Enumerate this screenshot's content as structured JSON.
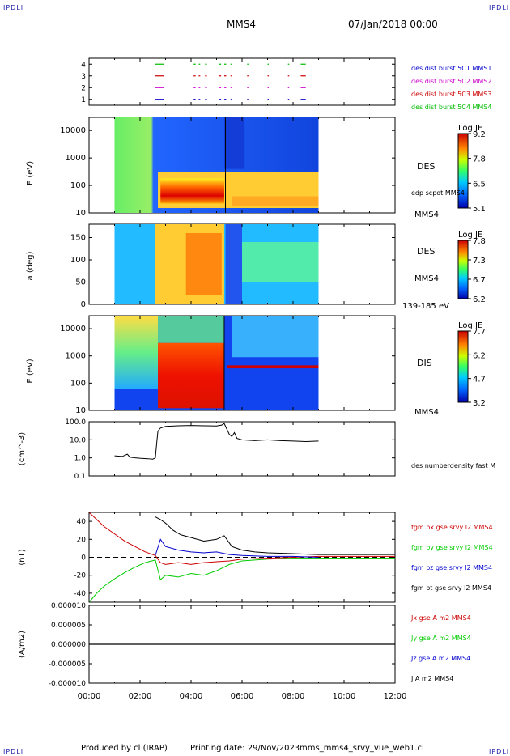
{
  "corners": {
    "tl": "IPDLI",
    "tr": "IPDLI",
    "bl": "IPDLI",
    "br": "IPDLI"
  },
  "header": {
    "spacecraft": "MMS4",
    "date": "07/Jan/2018 00:00"
  },
  "footer": {
    "produced": "Produced by cl (IRAP)",
    "printing": "Printing date: 29/Nov/2023",
    "script": "mms_mms4_srvy_vue_web1.cl"
  },
  "x_axis": {
    "labels": [
      "00:00",
      "02:00",
      "04:00",
      "06:00",
      "08:00",
      "10:00",
      "12:00"
    ],
    "range_hours": [
      0,
      12
    ]
  },
  "chart_data": [
    {
      "type": "scatter",
      "panel": "burst-availability",
      "ylim": [
        0.5,
        4.5
      ],
      "yticks": [
        "1",
        "2",
        "3",
        "4"
      ],
      "legend": [
        {
          "name": "des dist burst 5C1 MMS1",
          "color": "#0000cc"
        },
        {
          "name": "des dist burst 5C2 MMS2",
          "color": "#cc00cc"
        },
        {
          "name": "des dist burst 5C3 MMS3",
          "color": "#cc0000"
        },
        {
          "name": "des dist burst 5C4 MMS4",
          "color": "#00bb00"
        }
      ],
      "burst_intervals_hours": [
        [
          2.6,
          2.95
        ],
        [
          4.1,
          4.18
        ],
        [
          4.3,
          4.36
        ],
        [
          4.55,
          4.62
        ],
        [
          5.1,
          5.18
        ],
        [
          5.3,
          5.38
        ],
        [
          5.55,
          5.6
        ],
        [
          6.2,
          6.25
        ],
        [
          7.0,
          7.05
        ],
        [
          7.8,
          7.85
        ],
        [
          8.3,
          8.5
        ]
      ]
    },
    {
      "type": "heatmap",
      "panel": "des-energy-spectrogram",
      "ylabel": "E (eV)",
      "yscale": "log",
      "ylim": [
        10,
        30000
      ],
      "yticks": [
        "10",
        "100",
        "1000",
        "10000"
      ],
      "instrument": "DES",
      "spacecraft": "MMS4",
      "overlay": "edp scpot MMS4",
      "colorbar": {
        "title": "Log JE",
        "ticks": [
          "9.2",
          "7.8",
          "6.5",
          "5.1"
        ],
        "range": [
          5.1,
          9.2
        ]
      },
      "time_range_hours": [
        1.0,
        9.0
      ]
    },
    {
      "type": "heatmap",
      "panel": "des-pitch-angle",
      "ylabel": "a (deg)",
      "ylim": [
        0,
        180
      ],
      "yticks": [
        "0",
        "50",
        "100",
        "150"
      ],
      "instrument": "DES",
      "spacecraft": "MMS4",
      "energy_range": "139-185 eV",
      "colorbar": {
        "title": "Log JE",
        "ticks": [
          "7.8",
          "7.3",
          "6.7",
          "6.2"
        ],
        "range": [
          6.2,
          7.8
        ]
      },
      "time_range_hours": [
        1.0,
        9.0
      ]
    },
    {
      "type": "heatmap",
      "panel": "dis-energy-spectrogram",
      "ylabel": "E (eV)",
      "yscale": "log",
      "ylim": [
        10,
        30000
      ],
      "yticks": [
        "10",
        "100",
        "1000",
        "10000"
      ],
      "instrument": "DIS",
      "spacecraft": "MMS4",
      "colorbar": {
        "title": "Log JE",
        "ticks": [
          "7.7",
          "6.2",
          "4.7",
          "3.2"
        ],
        "range": [
          3.2,
          7.7
        ]
      },
      "time_range_hours": [
        1.0,
        9.0
      ]
    },
    {
      "type": "line",
      "panel": "density",
      "ylabel": "(cm^-3)",
      "yscale": "log",
      "ylim": [
        0.1,
        100
      ],
      "yticks": [
        "0.1",
        "1.0",
        "10.0",
        "100.0"
      ],
      "series": [
        {
          "name": "des numberdensity fast M",
          "color": "#000000",
          "x": [
            1.0,
            1.3,
            1.5,
            1.6,
            1.8,
            2.0,
            2.3,
            2.5,
            2.6,
            2.65,
            2.7,
            2.8,
            3.0,
            3.5,
            4.0,
            4.5,
            5.0,
            5.2,
            5.3,
            5.4,
            5.5,
            5.6,
            5.7,
            5.8,
            6.0,
            6.5,
            7.0,
            7.5,
            8.0,
            8.5,
            9.0
          ],
          "y": [
            1.3,
            1.2,
            1.6,
            1.1,
            1.0,
            0.95,
            0.9,
            0.85,
            1.0,
            6.0,
            30,
            45,
            55,
            60,
            62,
            60,
            58,
            65,
            80,
            40,
            20,
            15,
            25,
            12,
            10,
            9,
            10,
            9,
            8.5,
            8,
            8.5
          ]
        }
      ]
    },
    {
      "type": "line",
      "panel": "magnetic-field",
      "ylabel": "(nT)",
      "ylim": [
        -50,
        50
      ],
      "yticks": [
        "-40",
        "-20",
        "0",
        "20",
        "40"
      ],
      "series": [
        {
          "name": "fgm bx gse srvy l2 MMS4",
          "color": "#cc0000",
          "x": [
            0,
            0.3,
            0.6,
            1.0,
            1.4,
            1.8,
            2.2,
            2.6,
            2.8,
            3.0,
            3.5,
            4.0,
            4.5,
            5.0,
            5.5,
            6.0,
            7.0,
            8.0,
            9.0,
            10.0,
            11.0,
            12.0
          ],
          "y": [
            50,
            42,
            34,
            26,
            18,
            12,
            6,
            2,
            -6,
            -8,
            -6,
            -8,
            -6,
            -5,
            -4,
            -2,
            -1,
            0,
            1,
            1,
            1,
            1
          ]
        },
        {
          "name": "fgm by gse srvy l2 MMS4",
          "color": "#00cc00",
          "x": [
            0,
            0.3,
            0.6,
            1.0,
            1.4,
            1.8,
            2.2,
            2.6,
            2.8,
            3.0,
            3.5,
            4.0,
            4.5,
            5.0,
            5.5,
            6.0,
            7.0,
            8.0,
            9.0,
            10.0,
            11.0,
            12.0
          ],
          "y": [
            -52,
            -40,
            -32,
            -24,
            -17,
            -11,
            -6,
            -3,
            -25,
            -20,
            -22,
            -18,
            -20,
            -15,
            -8,
            -4,
            -2,
            -1,
            -1,
            -1,
            -1,
            -1
          ]
        },
        {
          "name": "fgm bz gse srvy l2 MMS4",
          "color": "#0000cc",
          "x": [
            2.6,
            2.8,
            3.0,
            3.5,
            4.0,
            4.5,
            5.0,
            5.5,
            6.0,
            7.0,
            8.0,
            9.0
          ],
          "y": [
            2,
            20,
            12,
            8,
            6,
            5,
            6,
            3,
            2,
            1,
            1,
            0
          ]
        },
        {
          "name": "fgm bt gse srvy l2 MMS4",
          "color": "#000000",
          "x": [
            2.6,
            2.8,
            3.0,
            3.3,
            3.6,
            4.0,
            4.5,
            5.0,
            5.3,
            5.6,
            6.0,
            6.5,
            7.0,
            8.0,
            9.0,
            10.0,
            11.0,
            12.0
          ],
          "y": [
            45,
            42,
            38,
            30,
            25,
            22,
            18,
            20,
            24,
            12,
            8,
            6,
            5,
            4,
            3,
            3,
            3,
            3
          ]
        }
      ]
    },
    {
      "type": "line",
      "panel": "current-density",
      "ylabel": "(A/m2)",
      "ylim": [
        -0.0001,
        0.0001
      ],
      "yticks": [
        "-0.000010",
        "-0.000005",
        "0.000000",
        "0.000005",
        "0.000010"
      ],
      "series": [
        {
          "name": "Jx gse A m2 MMS4",
          "color": "#cc0000"
        },
        {
          "name": "Jy gse A m2 MMS4",
          "color": "#00cc00"
        },
        {
          "name": "Jz gse A m2 MMS4",
          "color": "#0000cc"
        },
        {
          "name": "J A m2 MMS4",
          "color": "#000000"
        }
      ],
      "tick_labels_shown": [
        "0.000010",
        "0.000005",
        "0.000000",
        "-0.000005",
        "-0.000010"
      ]
    }
  ]
}
